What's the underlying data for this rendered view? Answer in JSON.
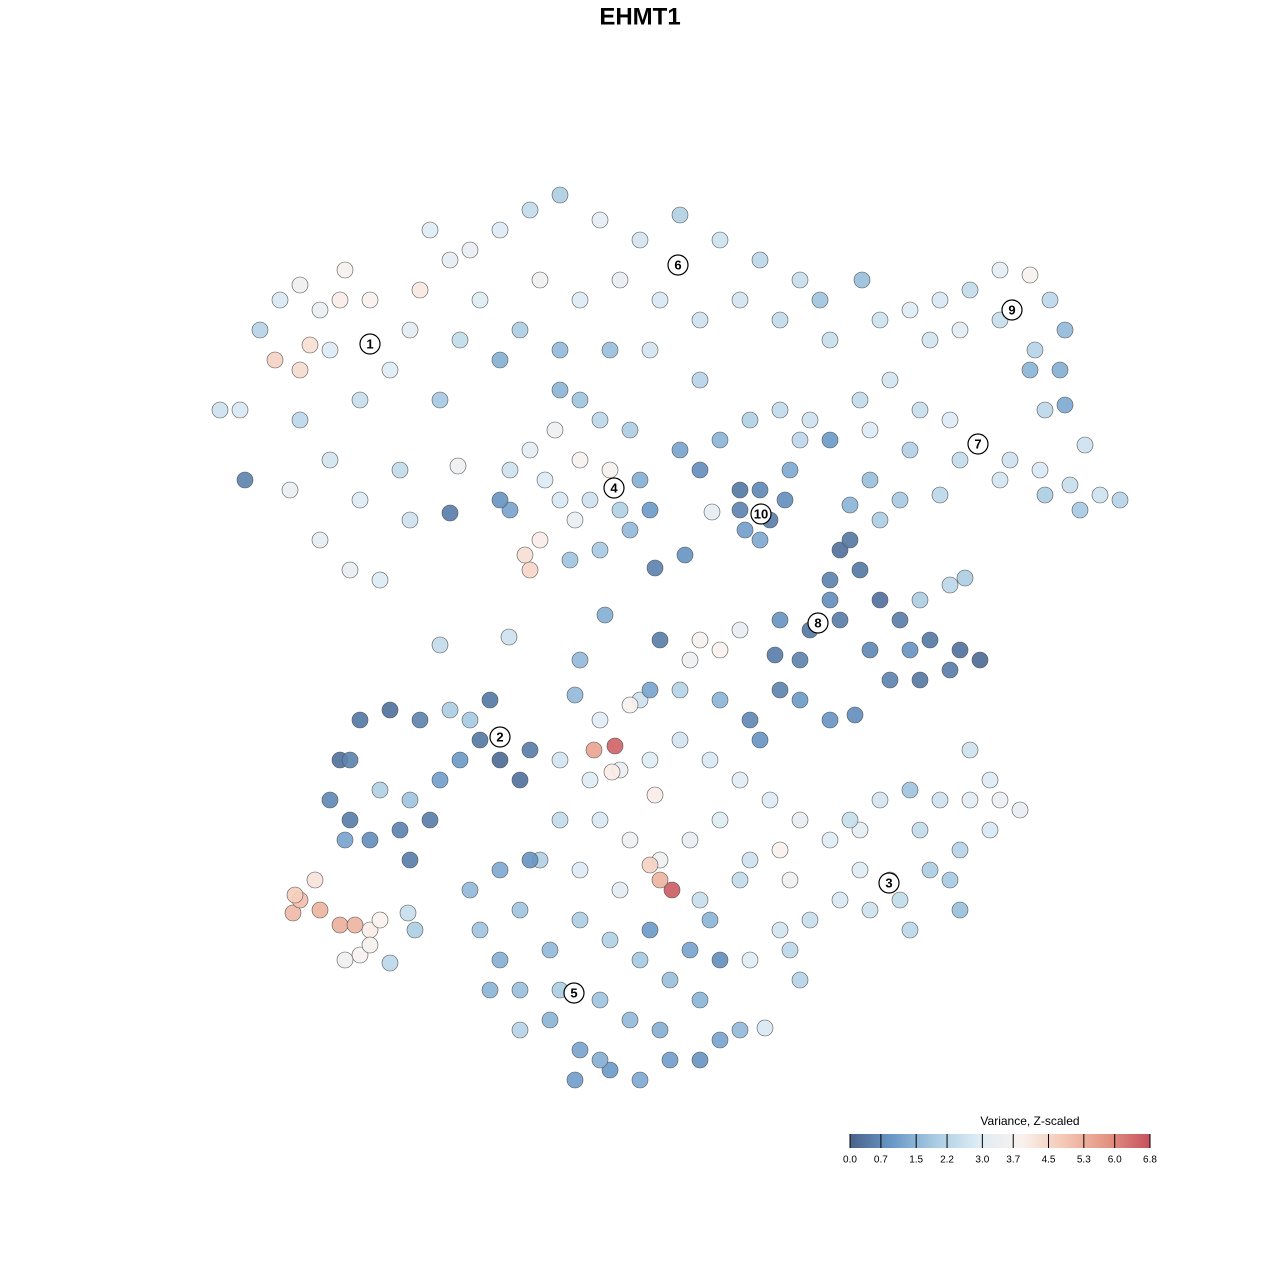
{
  "chart_data": {
    "type": "scatter",
    "title": "EHMT1",
    "xlim": [
      200,
      1130
    ],
    "ylim": [
      190,
      1100
    ],
    "x": [
      220,
      245,
      260,
      280,
      300,
      320,
      345,
      370,
      300,
      275,
      330,
      360,
      390,
      410,
      300,
      330,
      360,
      400,
      320,
      350,
      380,
      410,
      440,
      460,
      480,
      420,
      450,
      240,
      290,
      458,
      340,
      310,
      500,
      530,
      560,
      600,
      640,
      680,
      720,
      760,
      800,
      820,
      540,
      580,
      620,
      660,
      700,
      740,
      780,
      520,
      560,
      650,
      700,
      610,
      830,
      470,
      430,
      500,
      880,
      910,
      940,
      970,
      1000,
      1030,
      1050,
      1065,
      1060,
      1035,
      1000,
      960,
      930,
      862,
      1065,
      1030,
      860,
      890,
      920,
      950,
      980,
      1010,
      1040,
      1070,
      1100,
      1120,
      1080,
      1045,
      1000,
      960,
      910,
      870,
      900,
      940,
      880,
      850,
      1045,
      1085,
      870,
      510,
      530,
      555,
      580,
      610,
      640,
      650,
      630,
      600,
      570,
      540,
      525,
      530,
      510,
      560,
      590,
      620,
      600,
      580,
      560,
      630,
      500,
      575,
      545,
      680,
      700,
      720,
      750,
      780,
      800,
      790,
      760,
      740,
      770,
      785,
      760,
      745,
      810,
      830,
      712,
      740,
      685,
      655,
      840,
      860,
      830,
      880,
      900,
      930,
      960,
      980,
      950,
      920,
      890,
      870,
      840,
      810,
      780,
      800,
      830,
      920,
      950,
      965,
      910,
      850,
      775,
      330,
      350,
      340,
      360,
      390,
      420,
      450,
      470,
      490,
      500,
      520,
      530,
      380,
      410,
      400,
      430,
      410,
      440,
      460,
      370,
      345,
      480,
      350,
      560,
      590,
      620,
      650,
      680,
      710,
      740,
      770,
      800,
      830,
      860,
      600,
      630,
      660,
      690,
      720,
      750,
      780,
      790,
      560,
      540,
      580,
      620,
      700,
      740,
      600,
      640,
      680,
      720,
      750,
      780,
      760,
      700,
      720,
      690,
      740,
      660,
      650,
      615,
      594,
      672,
      660,
      650,
      612,
      655,
      630,
      575,
      800,
      830,
      855,
      605,
      580,
      440,
      850,
      880,
      910,
      940,
      970,
      1000,
      1020,
      990,
      960,
      930,
      900,
      870,
      840,
      810,
      790,
      780,
      890,
      860,
      920,
      950,
      970,
      990,
      910,
      800,
      750,
      960,
      480,
      500,
      520,
      550,
      580,
      610,
      640,
      670,
      700,
      720,
      740,
      765,
      700,
      670,
      640,
      610,
      580,
      550,
      520,
      560,
      600,
      630,
      660,
      690,
      720,
      710,
      650,
      600,
      575,
      520,
      490,
      470,
      500,
      530,
      293,
      300,
      315,
      320,
      340,
      355,
      370,
      380,
      360,
      345,
      370,
      408,
      415,
      390,
      295,
      509,
      450
    ],
    "y": [
      870,
      800,
      950,
      980,
      995,
      970,
      1010,
      980,
      910,
      920,
      930,
      880,
      910,
      950,
      860,
      820,
      780,
      810,
      740,
      710,
      700,
      760,
      880,
      940,
      980,
      990,
      1020,
      870,
      790,
      814,
      980,
      935,
      1050,
      1070,
      1085,
      1060,
      1040,
      1065,
      1040,
      1020,
      1000,
      980,
      1000,
      980,
      1000,
      980,
      960,
      980,
      960,
      950,
      930,
      930,
      900,
      930,
      940,
      1030,
      1050,
      920,
      960,
      970,
      980,
      990,
      1010,
      1005,
      980,
      950,
      910,
      930,
      960,
      950,
      940,
      1000,
      875,
      910,
      880,
      900,
      870,
      860,
      835,
      820,
      810,
      795,
      785,
      780,
      770,
      785,
      800,
      820,
      830,
      800,
      780,
      785,
      760,
      775,
      870,
      835,
      850,
      810,
      830,
      850,
      820,
      810,
      800,
      770,
      750,
      730,
      720,
      740,
      725,
      710,
      770,
      780,
      780,
      770,
      860,
      880,
      890,
      850,
      780,
      760,
      800,
      830,
      810,
      840,
      860,
      870,
      840,
      810,
      790,
      770,
      760,
      780,
      740,
      750,
      860,
      840,
      768,
      790,
      725,
      712,
      730,
      710,
      700,
      680,
      660,
      640,
      630,
      620,
      610,
      600,
      600,
      630,
      660,
      650,
      660,
      620,
      680,
      680,
      695,
      702,
      630,
      740,
      625,
      480,
      460,
      520,
      560,
      570,
      560,
      570,
      560,
      580,
      520,
      500,
      530,
      490,
      480,
      450,
      460,
      420,
      500,
      520,
      440,
      440,
      540,
      520,
      520,
      500,
      510,
      520,
      540,
      520,
      500,
      480,
      460,
      440,
      450,
      460,
      440,
      420,
      440,
      460,
      420,
      430,
      400,
      460,
      420,
      410,
      390,
      380,
      400,
      560,
      580,
      590,
      580,
      560,
      590,
      540,
      640,
      630,
      620,
      650,
      640,
      590,
      534,
      530,
      390,
      400,
      415,
      508,
      485,
      575,
      585,
      580,
      560,
      565,
      665,
      620,
      635,
      460,
      480,
      490,
      480,
      480,
      480,
      470,
      450,
      430,
      410,
      380,
      370,
      380,
      360,
      330,
      350,
      400,
      410,
      450,
      400,
      530,
      500,
      350,
      300,
      320,
      370,
      350,
      320,
      290,
      260,
      230,
      210,
      200,
      220,
      220,
      240,
      250,
      252,
      280,
      300,
      320,
      340,
      360,
      330,
      370,
      290,
      280,
      260,
      250,
      330,
      320,
      360,
      350,
      220,
      200,
      250,
      290,
      390,
      410,
      420,
      367,
      380,
      400,
      370,
      355,
      355,
      350,
      360,
      325,
      320,
      335,
      367,
      350,
      317,
      385,
      643,
      767
    ],
    "values": [
      2.6,
      0.6,
      2.2,
      2.8,
      3.6,
      3.4,
      3.7,
      3.9,
      4.4,
      4.6,
      2.9,
      2.5,
      3.0,
      3.1,
      2.3,
      2.7,
      2.9,
      2.4,
      3.2,
      3.3,
      2.9,
      2.6,
      1.9,
      2.4,
      3.0,
      4.1,
      3.2,
      2.8,
      3.4,
      3.5,
      4.0,
      4.3,
      2.9,
      2.4,
      2.0,
      3.2,
      2.7,
      2.1,
      2.6,
      2.3,
      2.5,
      1.8,
      3.6,
      2.9,
      3.3,
      2.8,
      2.6,
      2.7,
      2.4,
      2.0,
      1.6,
      2.7,
      2.2,
      1.7,
      2.5,
      3.3,
      3.0,
      1.4,
      2.6,
      3.0,
      2.8,
      2.4,
      3.2,
      3.8,
      2.3,
      1.6,
      1.4,
      2.2,
      2.5,
      3.1,
      2.7,
      1.7,
      1.3,
      1.5,
      2.4,
      2.7,
      2.5,
      2.9,
      3.0,
      2.6,
      2.8,
      2.5,
      2.6,
      2.2,
      1.9,
      2.0,
      2.7,
      2.4,
      2.1,
      1.7,
      1.9,
      2.3,
      2.0,
      1.5,
      2.3,
      2.6,
      2.9,
      2.6,
      3.2,
      3.5,
      3.8,
      3.7,
      1.4,
      1.0,
      1.6,
      1.9,
      1.8,
      4.0,
      4.3,
      4.5,
      1.2,
      2.8,
      2.6,
      2.1,
      2.3,
      1.8,
      1.5,
      2.0,
      0.9,
      3.4,
      2.9,
      1.2,
      0.8,
      1.5,
      2.1,
      2.4,
      2.3,
      1.3,
      0.7,
      0.6,
      0.5,
      0.8,
      1.3,
      1.1,
      2.6,
      1.0,
      3.2,
      0.4,
      0.9,
      0.6,
      0.3,
      0.4,
      0.6,
      0.3,
      0.5,
      0.4,
      0.3,
      0.2,
      0.5,
      0.4,
      0.6,
      0.7,
      0.5,
      0.4,
      0.9,
      0.6,
      0.8,
      2.0,
      2.3,
      2.0,
      0.9,
      0.4,
      0.5,
      0.7,
      0.5,
      0.3,
      0.4,
      0.3,
      0.6,
      2.0,
      1.9,
      0.4,
      0.2,
      0.3,
      0.5,
      2.1,
      1.8,
      0.6,
      0.5,
      0.5,
      1.1,
      1.0,
      0.8,
      1.2,
      0.4,
      0.6,
      2.7,
      3.0,
      3.4,
      3.0,
      2.7,
      2.8,
      3.1,
      2.9,
      3.3,
      3.0,
      3.2,
      2.8,
      3.5,
      3.6,
      3.3,
      3.0,
      2.6,
      3.9,
      3.6,
      2.4,
      2.1,
      2.9,
      3.1,
      2.5,
      2.4,
      3.1,
      2.6,
      2.2,
      1.5,
      0.7,
      0.6,
      0.9,
      3.7,
      3.9,
      3.5,
      3.3,
      0.5,
      1.2,
      6.5,
      5.5,
      6.6,
      5.2,
      4.6,
      4.0,
      4.0,
      3.8,
      1.6,
      1.0,
      0.9,
      0.8,
      1.4,
      1.6,
      2.4,
      2.5,
      2.7,
      1.8,
      2.6,
      3.1,
      3.4,
      3.3,
      2.8,
      2.2,
      2.0,
      2.4,
      2.6,
      2.8,
      2.5,
      2.3,
      2.7,
      2.5,
      3.0,
      2.4,
      1.9,
      2.6,
      2.9,
      2.3,
      2.2,
      3.0,
      1.7,
      1.8,
      1.4,
      1.7,
      1.5,
      1.2,
      1.0,
      1.3,
      1.1,
      0.9,
      1.2,
      1.6,
      2.8,
      1.5,
      1.7,
      1.9,
      2.1,
      2.0,
      1.6,
      1.8,
      2.0,
      1.8,
      1.6,
      1.4,
      1.2,
      0.8,
      1.5,
      1.0,
      1.4,
      1.1,
      2.2,
      1.5,
      1.6,
      1.3,
      0.9,
      5.1,
      5.0,
      4.2,
      5.2,
      5.3,
      5.2,
      4.0,
      3.9,
      3.8,
      3.6,
      3.7,
      2.5,
      2.0,
      2.3,
      4.7,
      2.6,
      0.5
    ],
    "annotations": [
      {
        "text": "1",
        "x": 370,
        "y": 936
      },
      {
        "text": "2",
        "x": 500,
        "y": 543
      },
      {
        "text": "3",
        "x": 889,
        "y": 397
      },
      {
        "text": "4",
        "x": 614,
        "y": 792
      },
      {
        "text": "5",
        "x": 574,
        "y": 287
      },
      {
        "text": "6",
        "x": 678,
        "y": 1015
      },
      {
        "text": "7",
        "x": 978,
        "y": 836
      },
      {
        "text": "8",
        "x": 818,
        "y": 657
      },
      {
        "text": "9",
        "x": 1012,
        "y": 970
      },
      {
        "text": "10",
        "x": 761,
        "y": 766
      }
    ],
    "colorbar": {
      "title": "Variance, Z-scaled",
      "clim": [
        0,
        6.8
      ],
      "ticks": [
        {
          "value": 0,
          "label": "0.0"
        },
        0.7,
        1.5,
        2.2,
        {
          "value": 3,
          "label": "3.0"
        },
        3.7,
        4.5,
        5.3,
        {
          "value": 6,
          "label": "6.0"
        },
        6.8
      ],
      "colors": [
        "#48628a",
        "#6a99c8",
        "#a9cce3",
        "#deecf5",
        "#f9f2ee",
        "#f4c7b4",
        "#e49482",
        "#c6505e"
      ]
    }
  }
}
